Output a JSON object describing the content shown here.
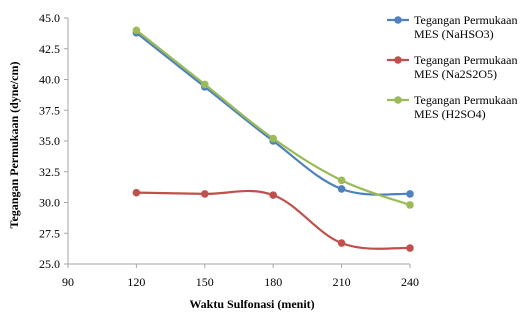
{
  "chart_data": {
    "type": "line",
    "title": "",
    "xlabel": "Waktu Sulfonasi (menit)",
    "ylabel": "Tegangan Permukaan (dyne/cm)",
    "xlim": [
      90,
      240
    ],
    "ylim": [
      25.0,
      45.0
    ],
    "xticks": [
      "90",
      "120",
      "150",
      "180",
      "210",
      "240"
    ],
    "yticks": [
      "25.0",
      "27.5",
      "30.0",
      "32.5",
      "35.0",
      "37.5",
      "40.0",
      "42.5",
      "45.0"
    ],
    "x": [
      120,
      150,
      180,
      210,
      240
    ],
    "grid": false,
    "legend_position": "right",
    "series": [
      {
        "name_line1": "Tegangan Permukaan",
        "name_line2": "MES (NaHSO3)",
        "color": "#4f81bd",
        "values": [
          43.8,
          39.4,
          35.0,
          31.1,
          30.7
        ]
      },
      {
        "name_line1": "Tegangan Permukaan",
        "name_line2": "MES (Na2S2O5)",
        "color": "#c0504d",
        "values": [
          30.8,
          30.7,
          30.6,
          26.7,
          26.3
        ]
      },
      {
        "name_line1": "Tegangan Permukaan",
        "name_line2": "MES (H2SO4)",
        "color": "#9bbb59",
        "values": [
          44.0,
          39.6,
          35.2,
          31.8,
          29.8
        ]
      }
    ]
  }
}
